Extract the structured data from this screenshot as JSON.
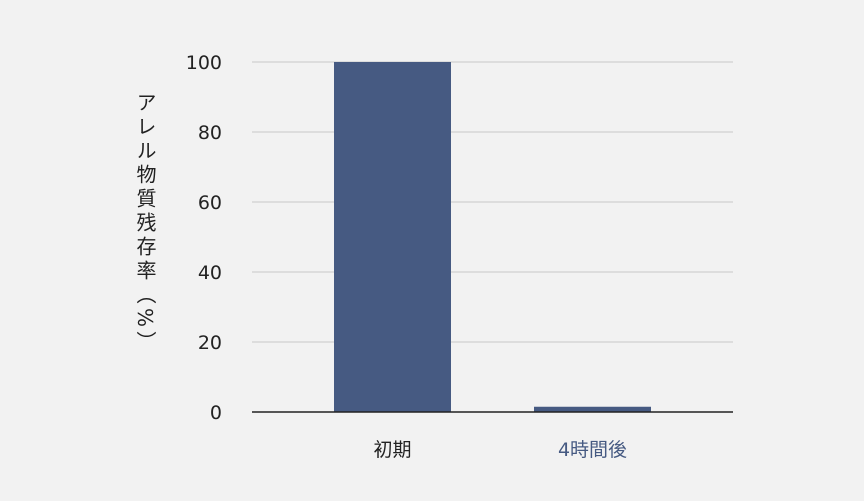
{
  "chart_data": {
    "type": "bar",
    "categories": [
      "初期",
      "4時間後"
    ],
    "values": [
      100,
      1.5
    ],
    "ylabel": "アレル物質残存率（%）",
    "xlabel": "",
    "ylim": [
      0,
      100
    ],
    "yticks": [
      0,
      20,
      40,
      60,
      80,
      100
    ],
    "grid": true,
    "colors": {
      "bar": "#465a82",
      "category_label_2": "#465a82",
      "grid": "#c8c8c8",
      "axis": "#222222"
    }
  }
}
